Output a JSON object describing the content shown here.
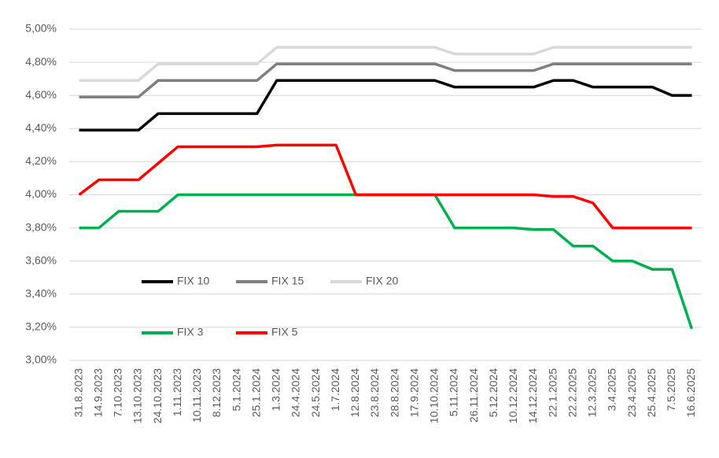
{
  "chart_data": {
    "type": "line",
    "categories": [
      "31.8.2023",
      "14.9.2023",
      "7.10.2023",
      "13.10.2023",
      "24.10.2023",
      "1.11.2023",
      "10.11.2023",
      "8.12.2023",
      "5.1.2024",
      "25.1.2024",
      "1.3.2024",
      "24.4.2024",
      "24.5.2024",
      "1.7.2024",
      "12.8.2024",
      "23.8.2024",
      "28.8.2024",
      "17.9.2024",
      "10.10.2024",
      "5.11.2024",
      "26.11.2024",
      "5.12.2024",
      "10.12.2024",
      "14.12.2024",
      "22.1.2025",
      "22.2.2025",
      "12.3.2025",
      "3.4.2025",
      "23.4.2025",
      "25.4.2025",
      "7.5.2025",
      "16.6.2025"
    ],
    "series": [
      {
        "name": "FIX 10",
        "color": "#000000",
        "values": [
          4.39,
          4.39,
          4.39,
          4.39,
          4.49,
          4.49,
          4.49,
          4.49,
          4.49,
          4.49,
          4.69,
          4.69,
          4.69,
          4.69,
          4.69,
          4.69,
          4.69,
          4.69,
          4.69,
          4.65,
          4.65,
          4.65,
          4.65,
          4.65,
          4.69,
          4.69,
          4.65,
          4.65,
          4.65,
          4.65,
          4.6,
          4.6
        ]
      },
      {
        "name": "FIX 15",
        "color": "#7f7f7f",
        "values": [
          4.59,
          4.59,
          4.59,
          4.59,
          4.69,
          4.69,
          4.69,
          4.69,
          4.69,
          4.69,
          4.79,
          4.79,
          4.79,
          4.79,
          4.79,
          4.79,
          4.79,
          4.79,
          4.79,
          4.75,
          4.75,
          4.75,
          4.75,
          4.75,
          4.79,
          4.79,
          4.79,
          4.79,
          4.79,
          4.79,
          4.79,
          4.79
        ]
      },
      {
        "name": "FIX 20",
        "color": "#d9d9d9",
        "values": [
          4.69,
          4.69,
          4.69,
          4.69,
          4.79,
          4.79,
          4.79,
          4.79,
          4.79,
          4.79,
          4.89,
          4.89,
          4.89,
          4.89,
          4.89,
          4.89,
          4.89,
          4.89,
          4.89,
          4.85,
          4.85,
          4.85,
          4.85,
          4.85,
          4.89,
          4.89,
          4.89,
          4.89,
          4.89,
          4.89,
          4.89,
          4.89
        ]
      },
      {
        "name": "FIX 3",
        "color": "#00b050",
        "values": [
          3.8,
          3.8,
          3.9,
          3.9,
          3.9,
          4.0,
          4.0,
          4.0,
          4.0,
          4.0,
          4.0,
          4.0,
          4.0,
          4.0,
          4.0,
          4.0,
          4.0,
          4.0,
          4.0,
          3.8,
          3.8,
          3.8,
          3.8,
          3.79,
          3.79,
          3.69,
          3.69,
          3.6,
          3.6,
          3.55,
          3.55,
          3.19
        ]
      },
      {
        "name": "FIX 5",
        "color": "#ff0000",
        "values": [
          4.0,
          4.09,
          4.09,
          4.09,
          4.19,
          4.29,
          4.29,
          4.29,
          4.29,
          4.29,
          4.3,
          4.3,
          4.3,
          4.3,
          4.0,
          4.0,
          4.0,
          4.0,
          4.0,
          4.0,
          4.0,
          4.0,
          4.0,
          4.0,
          3.99,
          3.99,
          3.95,
          3.8,
          3.8,
          3.8,
          3.8,
          3.8
        ]
      }
    ],
    "ylim": [
      3.0,
      5.0
    ],
    "yticks": [
      {
        "value": 3.0,
        "label": "3,00%"
      },
      {
        "value": 3.2,
        "label": "3,20%"
      },
      {
        "value": 3.4,
        "label": "3,40%"
      },
      {
        "value": 3.6,
        "label": "3,60%"
      },
      {
        "value": 3.8,
        "label": "3,80%"
      },
      {
        "value": 4.0,
        "label": "4,00%"
      },
      {
        "value": 4.2,
        "label": "4,20%"
      },
      {
        "value": 4.4,
        "label": "4,40%"
      },
      {
        "value": 4.6,
        "label": "4,60%"
      },
      {
        "value": 4.8,
        "label": "4,80%"
      },
      {
        "value": 5.0,
        "label": "5,00%"
      }
    ],
    "grid": true
  }
}
